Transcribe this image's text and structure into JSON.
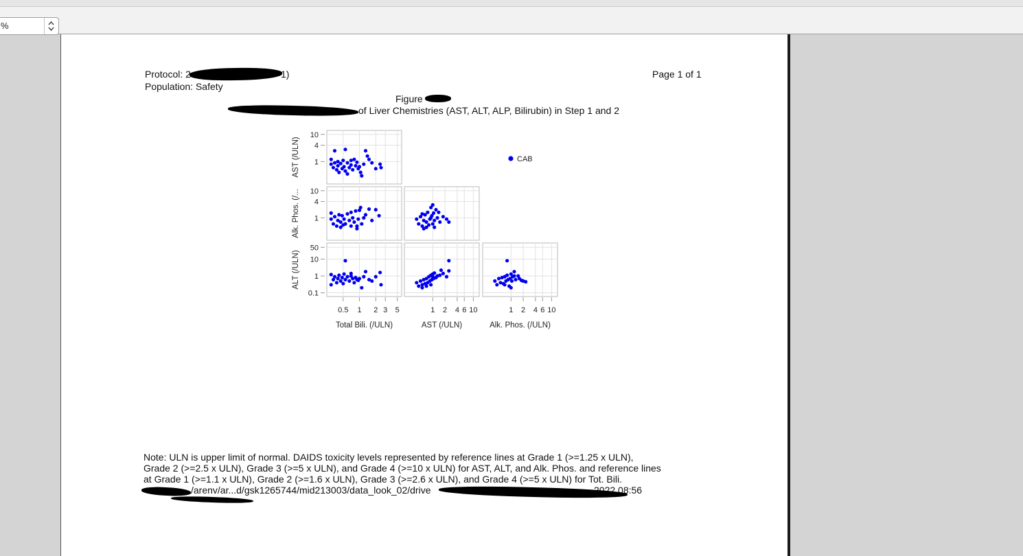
{
  "viewer": {
    "zoom_value": "%"
  },
  "report": {
    "protocol_label": "Protocol: 2",
    "protocol_tail": "1)",
    "population": "Population: Safety",
    "page_label": "Page 1 of 1",
    "figure_label": "Figure",
    "title_visible": "of Liver Chemistries (AST, ALT, ALP, Bilirubin) in Step 1 and 2",
    "note_lines": [
      "Note: ULN is upper limit of normal. DAIDS toxicity levels represented by reference lines at Grade 1 (>=1.25 x ULN),",
      "Grade 2 (>=2.5 x ULN), Grade 3 (>=5 x ULN), and Grade 4 (>=10 x ULN) for AST, ALT, and Alk. Phos. and reference lines",
      "at Grade 1 (>=1.1 x ULN), Grade 2 (>=1.6 x ULN), Grade 3 (>=2.6 x ULN), and Grade 4 (>=5 x ULN) for Tot. Bili."
    ],
    "path_line": "/arenv/ar...d/gsk1265744/mid213003/data_look_02/drive",
    "path_tail": "2022 08:56"
  },
  "chart_data": {
    "type": "scatter",
    "legend": {
      "placement": "top-right",
      "entries": [
        {
          "name": "CAB",
          "color": "#0000ee"
        }
      ]
    },
    "row_labels": [
      "AST (/ULN)",
      "Alk. Phos. (/...",
      "ALT (/ULN)"
    ],
    "col_labels": [
      "Total Bili. (/ULN)",
      "AST (/ULN)",
      "Alk. Phos. (/ULN)"
    ],
    "x_ticks": [
      [
        "0.5",
        "1",
        "2",
        "3",
        "5"
      ],
      [
        "1",
        "2",
        "4",
        "6",
        "10"
      ],
      [
        "1",
        "2",
        "4",
        "6",
        "10"
      ]
    ],
    "y_ticks": [
      [
        "1",
        "4",
        "10"
      ],
      [
        "1",
        "4",
        "10"
      ],
      [
        "0.1",
        "1",
        "10",
        "50"
      ]
    ],
    "log_scale": true,
    "grid": true,
    "panels": [
      {
        "row": "AST (/ULN)",
        "col": "Total Bili. (/ULN)",
        "x_range": [
          0.25,
          6
        ],
        "y_range": [
          0.15,
          14
        ],
        "points": [
          [
            0.3,
            0.8
          ],
          [
            0.33,
            0.6
          ],
          [
            0.35,
            0.9
          ],
          [
            0.38,
            0.5
          ],
          [
            0.4,
            0.7
          ],
          [
            0.42,
            0.4
          ],
          [
            0.45,
            0.85
          ],
          [
            0.48,
            0.55
          ],
          [
            0.5,
            1.1
          ],
          [
            0.52,
            0.65
          ],
          [
            0.55,
            0.45
          ],
          [
            0.6,
            0.9
          ],
          [
            0.65,
            0.6
          ],
          [
            0.7,
            0.75
          ],
          [
            0.75,
            0.5
          ],
          [
            0.8,
            1.2
          ],
          [
            0.85,
            0.7
          ],
          [
            0.9,
            0.95
          ],
          [
            0.95,
            0.55
          ],
          [
            1.0,
            0.65
          ],
          [
            1.05,
            0.4
          ],
          [
            0.35,
            2.5
          ],
          [
            0.55,
            2.8
          ],
          [
            0.3,
            1.2
          ],
          [
            1.2,
            0.8
          ],
          [
            1.3,
            2.5
          ],
          [
            1.4,
            1.6
          ],
          [
            1.5,
            1.2
          ],
          [
            1.7,
            0.9
          ],
          [
            2.0,
            0.55
          ],
          [
            2.4,
            0.8
          ],
          [
            2.5,
            0.6
          ],
          [
            0.6,
            0.35
          ],
          [
            0.4,
            1.0
          ],
          [
            0.7,
            1.1
          ],
          [
            1.1,
            0.3
          ]
        ]
      },
      {
        "row": "Alk. Phos. (/...",
        "col": "Total Bili. (/ULN)",
        "x_range": [
          0.25,
          6
        ],
        "y_range": [
          0.15,
          14
        ],
        "points": [
          [
            0.3,
            0.9
          ],
          [
            0.33,
            0.6
          ],
          [
            0.35,
            1.1
          ],
          [
            0.38,
            0.5
          ],
          [
            0.4,
            0.8
          ],
          [
            0.42,
            1.3
          ],
          [
            0.45,
            0.7
          ],
          [
            0.48,
            1.2
          ],
          [
            0.5,
            0.55
          ],
          [
            0.52,
            0.9
          ],
          [
            0.55,
            0.6
          ],
          [
            0.6,
            1.4
          ],
          [
            0.65,
            0.8
          ],
          [
            0.7,
            0.5
          ],
          [
            0.75,
            1.0
          ],
          [
            0.8,
            0.7
          ],
          [
            0.85,
            1.8
          ],
          [
            0.9,
            0.4
          ],
          [
            0.95,
            0.9
          ],
          [
            1.0,
            1.9
          ],
          [
            1.05,
            2.4
          ],
          [
            1.1,
            0.6
          ],
          [
            1.2,
            1.0
          ],
          [
            1.3,
            1.3
          ],
          [
            1.5,
            2.1
          ],
          [
            1.7,
            0.8
          ],
          [
            2.0,
            2.0
          ],
          [
            2.3,
            1.2
          ],
          [
            0.9,
            0.5
          ],
          [
            0.3,
            1.5
          ],
          [
            0.45,
            0.45
          ],
          [
            0.7,
            1.6
          ]
        ]
      },
      {
        "row": "Alk. Phos. (/...",
        "col": "AST (/ULN)",
        "x_range": [
          0.2,
          14
        ],
        "y_range": [
          0.15,
          14
        ],
        "points": [
          [
            0.4,
            0.9
          ],
          [
            0.45,
            0.6
          ],
          [
            0.5,
            1.1
          ],
          [
            0.55,
            0.5
          ],
          [
            0.6,
            0.8
          ],
          [
            0.65,
            1.3
          ],
          [
            0.7,
            0.7
          ],
          [
            0.75,
            1.6
          ],
          [
            0.8,
            0.55
          ],
          [
            0.85,
            0.9
          ],
          [
            0.9,
            2.4
          ],
          [
            0.95,
            1.2
          ],
          [
            1.0,
            0.6
          ],
          [
            1.05,
            1.5
          ],
          [
            1.1,
            0.8
          ],
          [
            1.2,
            2.0
          ],
          [
            1.3,
            1.0
          ],
          [
            1.5,
            0.7
          ],
          [
            1.8,
            1.1
          ],
          [
            2.2,
            0.9
          ],
          [
            2.5,
            0.7
          ],
          [
            0.55,
            1.4
          ],
          [
            0.7,
            0.45
          ],
          [
            1.0,
            3.0
          ],
          [
            1.4,
            1.6
          ],
          [
            0.6,
            0.4
          ],
          [
            0.9,
            1.0
          ],
          [
            1.1,
            0.45
          ]
        ]
      },
      {
        "row": "ALT (/ULN)",
        "col": "Total Bili. (/ULN)",
        "x_range": [
          0.25,
          6
        ],
        "y_range": [
          0.06,
          90
        ],
        "points": [
          [
            0.3,
            1.2
          ],
          [
            0.33,
            0.6
          ],
          [
            0.35,
            0.9
          ],
          [
            0.38,
            0.4
          ],
          [
            0.4,
            0.7
          ],
          [
            0.42,
            1.1
          ],
          [
            0.45,
            0.5
          ],
          [
            0.48,
            0.8
          ],
          [
            0.5,
            0.35
          ],
          [
            0.52,
            1.3
          ],
          [
            0.55,
            0.6
          ],
          [
            0.6,
            0.9
          ],
          [
            0.65,
            0.5
          ],
          [
            0.7,
            1.0
          ],
          [
            0.75,
            0.7
          ],
          [
            0.8,
            0.4
          ],
          [
            0.85,
            0.8
          ],
          [
            0.9,
            0.6
          ],
          [
            0.95,
            0.55
          ],
          [
            1.0,
            0.7
          ],
          [
            1.1,
            0.2
          ],
          [
            0.55,
            8
          ],
          [
            1.2,
            0.9
          ],
          [
            1.3,
            1.8
          ],
          [
            1.5,
            0.6
          ],
          [
            1.7,
            0.5
          ],
          [
            2.0,
            0.9
          ],
          [
            2.4,
            1.6
          ],
          [
            2.5,
            0.3
          ],
          [
            0.7,
            1.4
          ],
          [
            0.3,
            0.3
          ]
        ]
      },
      {
        "row": "ALT (/ULN)",
        "col": "AST (/ULN)",
        "x_range": [
          0.2,
          14
        ],
        "y_range": [
          0.06,
          90
        ],
        "points": [
          [
            0.4,
            0.4
          ],
          [
            0.45,
            0.25
          ],
          [
            0.5,
            0.5
          ],
          [
            0.55,
            0.3
          ],
          [
            0.6,
            0.6
          ],
          [
            0.65,
            0.35
          ],
          [
            0.7,
            0.7
          ],
          [
            0.75,
            0.4
          ],
          [
            0.8,
            0.9
          ],
          [
            0.85,
            0.5
          ],
          [
            0.9,
            1.1
          ],
          [
            0.95,
            0.6
          ],
          [
            1.0,
            1.3
          ],
          [
            1.05,
            0.7
          ],
          [
            1.1,
            1.5
          ],
          [
            1.2,
            0.8
          ],
          [
            1.3,
            1.0
          ],
          [
            1.5,
            1.1
          ],
          [
            1.8,
            1.4
          ],
          [
            2.2,
            0.9
          ],
          [
            2.5,
            2.0
          ],
          [
            2.5,
            8
          ],
          [
            0.55,
            0.2
          ],
          [
            0.7,
            0.25
          ],
          [
            1.0,
            0.9
          ],
          [
            0.9,
            0.3
          ],
          [
            1.6,
            2.2
          ]
        ]
      },
      {
        "row": "ALT (/ULN)",
        "col": "Alk. Phos. (/ULN)",
        "x_range": [
          0.2,
          14
        ],
        "y_range": [
          0.06,
          90
        ],
        "points": [
          [
            0.4,
            0.5
          ],
          [
            0.45,
            0.3
          ],
          [
            0.5,
            0.7
          ],
          [
            0.55,
            0.4
          ],
          [
            0.6,
            0.8
          ],
          [
            0.65,
            0.35
          ],
          [
            0.7,
            0.9
          ],
          [
            0.75,
            0.5
          ],
          [
            0.8,
            1.1
          ],
          [
            0.85,
            0.6
          ],
          [
            0.9,
            0.25
          ],
          [
            0.95,
            0.7
          ],
          [
            1.0,
            1.3
          ],
          [
            1.05,
            0.5
          ],
          [
            1.1,
            0.9
          ],
          [
            1.2,
            1.8
          ],
          [
            1.3,
            0.6
          ],
          [
            1.5,
            1.0
          ],
          [
            1.6,
            0.7
          ],
          [
            1.8,
            0.55
          ],
          [
            2.0,
            0.5
          ],
          [
            2.3,
            0.45
          ],
          [
            0.8,
            8
          ],
          [
            1.0,
            0.2
          ],
          [
            0.7,
            0.3
          ],
          [
            1.2,
            1.0
          ]
        ]
      }
    ]
  }
}
